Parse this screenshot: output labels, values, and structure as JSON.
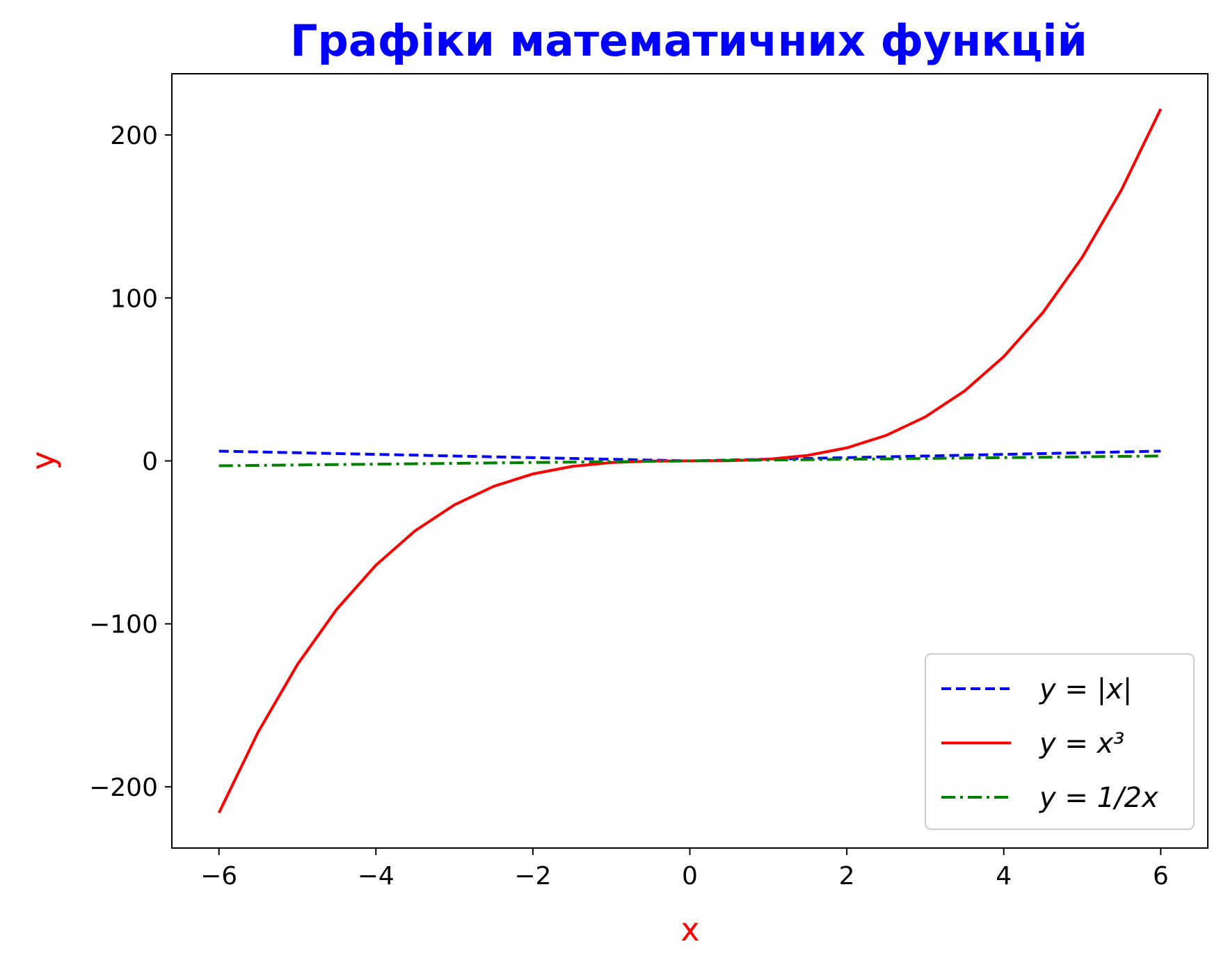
{
  "chart_data": {
    "type": "line",
    "title": "Графіки математичних функцій",
    "title_color": "#0000ff",
    "xlabel": "x",
    "ylabel": "y",
    "label_color": "#ff0000",
    "xlim": [
      -6.6,
      6.6
    ],
    "ylim": [
      -237.6,
      237.6
    ],
    "xticks": [
      -6,
      -4,
      -2,
      0,
      2,
      4,
      6
    ],
    "xtick_labels": [
      "−6",
      "−4",
      "−2",
      "0",
      "2",
      "4",
      "6"
    ],
    "yticks": [
      -200,
      -100,
      0,
      100,
      200
    ],
    "ytick_labels": [
      "−200",
      "−100",
      "0",
      "100",
      "200"
    ],
    "grid": false,
    "legend_position": "lower-right",
    "x": [
      -6,
      -5.5,
      -5,
      -4.5,
      -4,
      -3.5,
      -3,
      -2.5,
      -2,
      -1.5,
      -1,
      -0.5,
      0,
      0.5,
      1,
      1.5,
      2,
      2.5,
      3,
      3.5,
      4,
      4.5,
      5,
      5.5,
      6
    ],
    "series": [
      {
        "name": "y = |x|",
        "color": "#0000ff",
        "style": "dashed",
        "values": [
          6,
          5.5,
          5,
          4.5,
          4,
          3.5,
          3,
          2.5,
          2,
          1.5,
          1,
          0.5,
          0,
          0.5,
          1,
          1.5,
          2,
          2.5,
          3,
          3.5,
          4,
          4.5,
          5,
          5.5,
          6
        ]
      },
      {
        "name": "y = x³",
        "color": "#ff0000",
        "style": "solid",
        "values": [
          -216,
          -166.375,
          -125,
          -91.125,
          -64,
          -42.875,
          -27,
          -15.625,
          -8,
          -3.375,
          -1,
          -0.125,
          0,
          0.125,
          1,
          3.375,
          8,
          15.625,
          27,
          42.875,
          64,
          91.125,
          125,
          166.375,
          216
        ]
      },
      {
        "name": "y = 1/2x",
        "color": "#008000",
        "style": "dashdot",
        "values": [
          -3,
          -2.75,
          -2.5,
          -2.25,
          -2,
          -1.75,
          -1.5,
          -1.25,
          -1,
          -0.75,
          -0.5,
          -0.25,
          0,
          0.25,
          0.5,
          0.75,
          1,
          1.25,
          1.5,
          1.75,
          2,
          2.25,
          2.5,
          2.75,
          3
        ]
      }
    ]
  }
}
